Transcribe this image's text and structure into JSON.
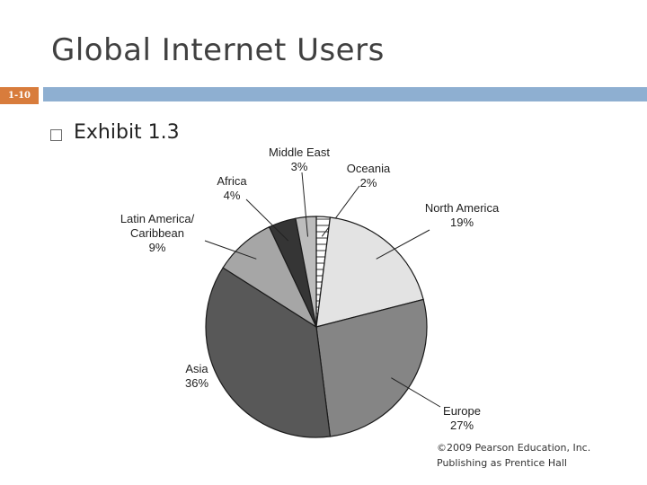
{
  "title": "Global Internet Users",
  "slide_number": "1-10",
  "bullet": {
    "text": "Exhibit 1.3"
  },
  "credit": {
    "line1": "©2009 Pearson Education, Inc.",
    "line2": "Publishing as Prentice Hall"
  },
  "chart_data": {
    "type": "pie",
    "title": "",
    "start": "12 o'clock",
    "direction": "clockwise",
    "slices": [
      {
        "label": "Oceania",
        "value": 2,
        "value_label": "2%",
        "color": "#ffffff",
        "pattern": "horizontal-lines"
      },
      {
        "label": "North America",
        "value": 19,
        "value_label": "19%",
        "color": "#e3e3e3"
      },
      {
        "label": "Europe",
        "value": 27,
        "value_label": "27%",
        "color": "#858585"
      },
      {
        "label": "Asia",
        "value": 36,
        "value_label": "36%",
        "color": "#585858"
      },
      {
        "label": "Latin America/\nCaribbean",
        "value": 9,
        "value_label": "9%",
        "color": "#a6a6a6"
      },
      {
        "label": "Africa",
        "value": 4,
        "value_label": "4%",
        "color": "#353535"
      },
      {
        "label": "Middle East",
        "value": 3,
        "value_label": "3%",
        "color": "#bdbdbd"
      }
    ]
  }
}
